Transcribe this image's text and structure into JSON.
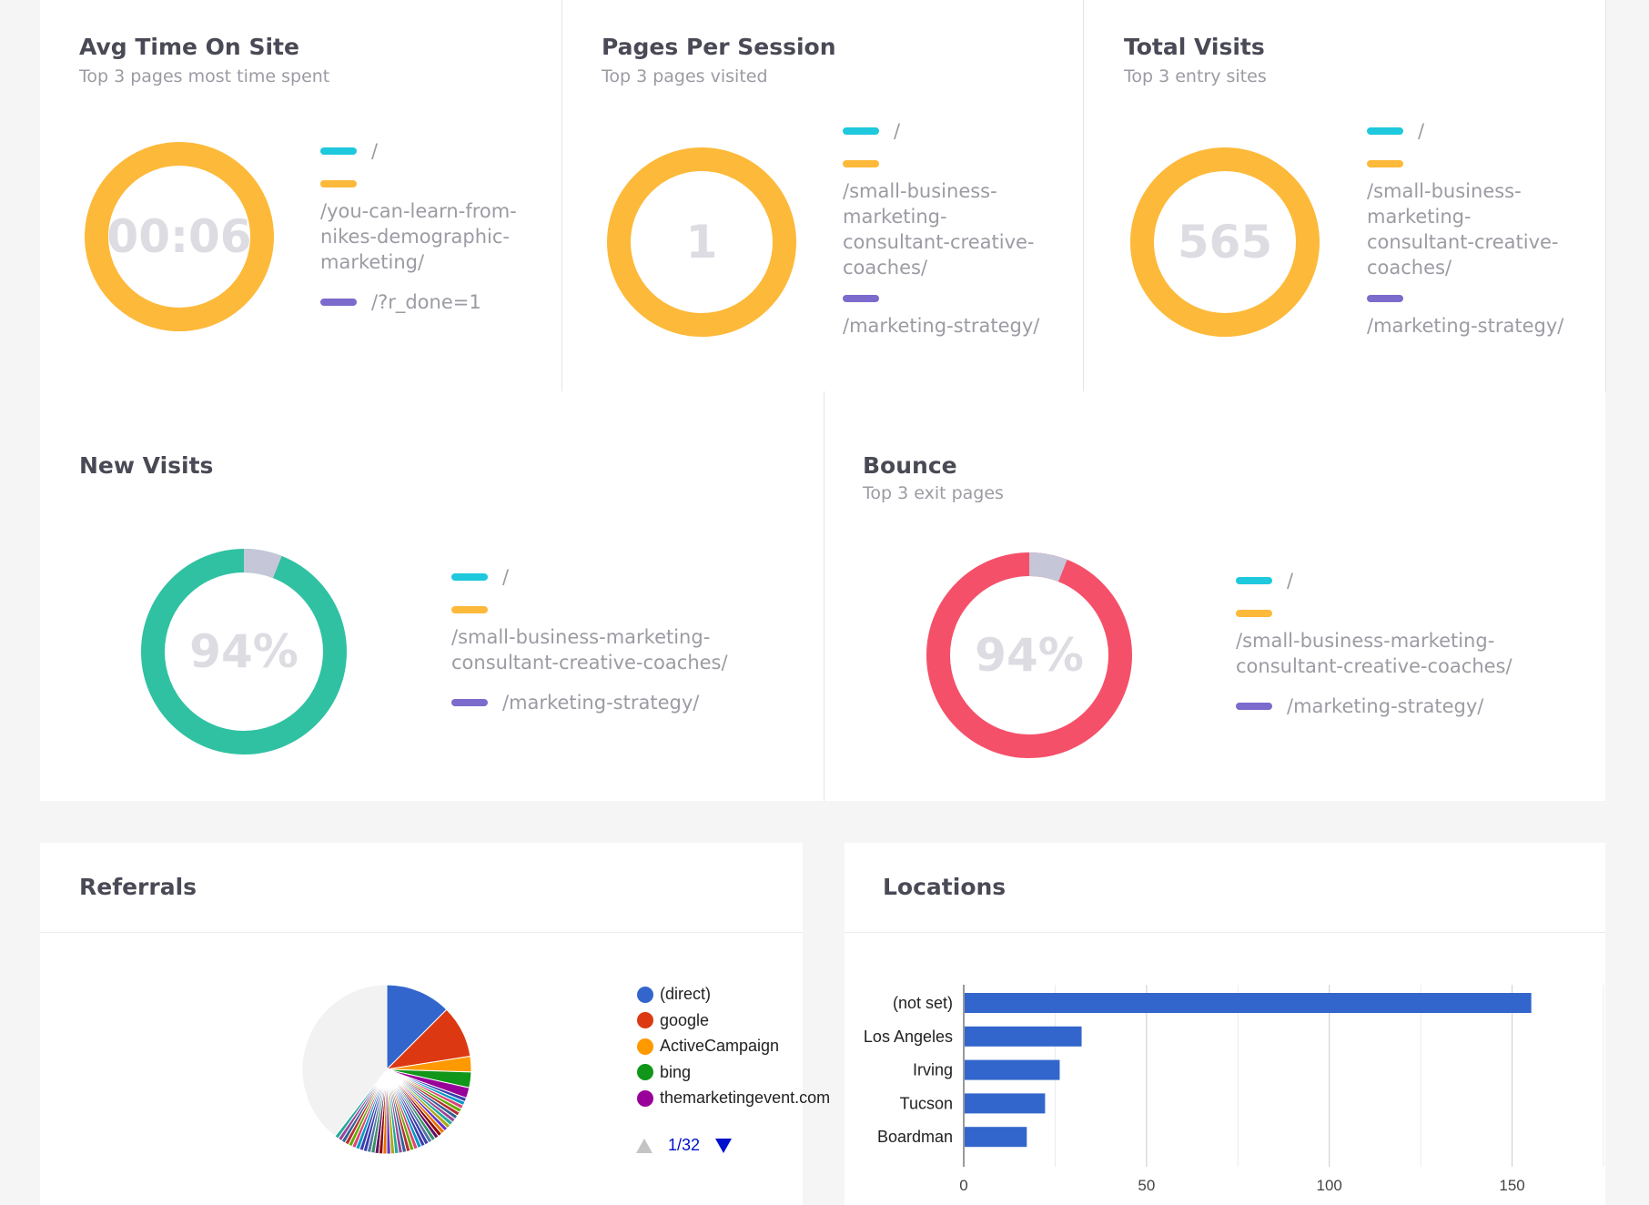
{
  "colors": {
    "cyan": "#1ec8dd",
    "amber": "#fdb93a",
    "purple": "#7c6bcd",
    "teal": "#2fc1a2",
    "red": "#f5506a",
    "gray_seg": "#c5c6d7",
    "bar_blue": "#3366cc"
  },
  "top_cards": [
    {
      "title": "Avg Time On Site",
      "subtitle": "Top 3 pages most time spent",
      "center": "00:06",
      "legend": [
        {
          "color": "cyan",
          "text": "/"
        },
        {
          "color": "amber",
          "text": "/you-can-learn-from-\nnikes-demographic-\nmarketing/"
        },
        {
          "color": "purple",
          "text": "/?r_done=1"
        }
      ]
    },
    {
      "title": "Pages Per Session",
      "subtitle": "Top 3 pages visited",
      "center": "1",
      "legend": [
        {
          "color": "cyan",
          "text": "/"
        },
        {
          "color": "amber",
          "text": "/small-business-\nmarketing-\nconsultant-creative-\ncoaches/"
        },
        {
          "color": "purple",
          "text": "/marketing-strategy/"
        }
      ]
    },
    {
      "title": "Total Visits",
      "subtitle": "Top 3 entry sites",
      "center": "565",
      "legend": [
        {
          "color": "cyan",
          "text": "/"
        },
        {
          "color": "amber",
          "text": "/small-business-\nmarketing-\nconsultant-creative-\ncoaches/"
        },
        {
          "color": "purple",
          "text": "/marketing-strategy/"
        }
      ]
    }
  ],
  "new_visits": {
    "title": "New Visits",
    "center": "94%",
    "percent": 94,
    "legend": [
      {
        "color": "cyan",
        "text": "/"
      },
      {
        "color": "amber",
        "text": "/small-business-marketing-\nconsultant-creative-coaches/"
      },
      {
        "color": "purple",
        "text": "/marketing-strategy/"
      }
    ]
  },
  "bounce": {
    "title": "Bounce",
    "subtitle": "Top 3 exit pages",
    "center": "94%",
    "percent": 94,
    "legend": [
      {
        "color": "cyan",
        "text": "/"
      },
      {
        "color": "amber",
        "text": "/small-business-marketing-\nconsultant-creative-coaches/"
      },
      {
        "color": "purple",
        "text": "/marketing-strategy/"
      }
    ]
  },
  "referrals": {
    "title": "Referrals",
    "legend": [
      {
        "label": "(direct)",
        "color": "#3366cc"
      },
      {
        "label": "google",
        "color": "#dc3912"
      },
      {
        "label": "ActiveCampaign",
        "color": "#ff9900"
      },
      {
        "label": "bing",
        "color": "#109618"
      },
      {
        "label": "themarketingevent.com",
        "color": "#990099"
      }
    ],
    "pager": "1/32"
  },
  "locations": {
    "title": "Locations"
  },
  "chart_data": [
    {
      "type": "pie",
      "title": "Referrals",
      "categories": [
        "(direct)",
        "google",
        "ActiveCampaign",
        "bing",
        "themarketingevent.com"
      ],
      "values": [
        12.5,
        10,
        3,
        3,
        2
      ]
    },
    {
      "type": "bar",
      "orientation": "horizontal",
      "title": "Locations",
      "categories": [
        "(not set)",
        "Los Angeles",
        "Irving",
        "Tucson",
        "Boardman"
      ],
      "values": [
        155,
        32,
        26,
        22,
        17
      ],
      "xlim": [
        0,
        175
      ],
      "xticks": [
        0,
        50,
        100,
        150
      ],
      "grid": true
    }
  ]
}
